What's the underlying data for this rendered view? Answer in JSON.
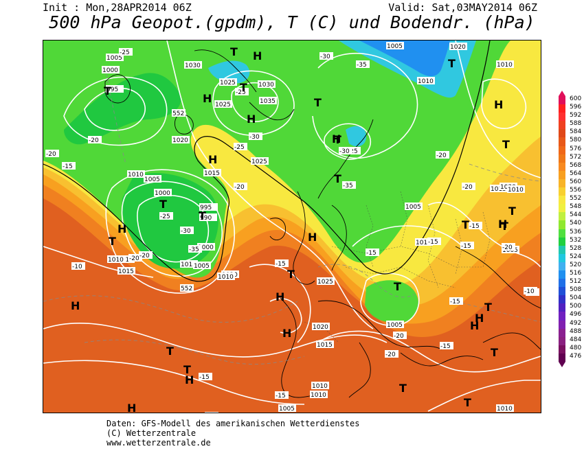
{
  "header": {
    "init": "Init : Mon,28APR2014 06Z",
    "valid": "Valid: Sat,03MAY2014 06Z",
    "title": "500 hPa Geopot.(gpdm), T (C) und Bodendr. (hPa)"
  },
  "footer": {
    "line1": "Daten: GFS-Modell des amerikanischen Wetterdienstes",
    "line2": "(C) Wetterzentrale",
    "line3": "www.wetterzentrale.de"
  },
  "legend": {
    "values": [
      "600",
      "596",
      "592",
      "588",
      "584",
      "580",
      "576",
      "572",
      "568",
      "564",
      "560",
      "556",
      "552",
      "548",
      "544",
      "540",
      "536",
      "532",
      "528",
      "524",
      "520",
      "516",
      "512",
      "508",
      "504",
      "500",
      "496",
      "492",
      "488",
      "484",
      "480",
      "476"
    ],
    "colors": [
      "#e0105a",
      "#ff2020",
      "#ff3030",
      "#f04020",
      "#e04818",
      "#e85818",
      "#f06818",
      "#f07818",
      "#f88a20",
      "#f8a020",
      "#f8b428",
      "#f8d030",
      "#f8e840",
      "#f0f040",
      "#c0f040",
      "#90e830",
      "#50e040",
      "#20d040",
      "#20c8b0",
      "#20c8e0",
      "#40b0f0",
      "#2090f0",
      "#2070e8",
      "#2050d8",
      "#3030c8",
      "#5020c0",
      "#7020c0",
      "#8020b0",
      "#8a2090",
      "#8a2080",
      "#7a1060",
      "#600050"
    ]
  },
  "map": {
    "pressure_labels": [
      "1005",
      "1000",
      "995",
      "1030",
      "1025",
      "1030",
      "1035",
      "1025",
      "995",
      "1000",
      "1010",
      "1015",
      "1015",
      "1010",
      "1020",
      "1020",
      "1025",
      "1005",
      "1000",
      "995",
      "990",
      "1000",
      "1005",
      "1010",
      "1010",
      "1015",
      "1025",
      "1005",
      "1010",
      "1005",
      "1010",
      "1020",
      "1015",
      "1010",
      "1005",
      "1010",
      "1015",
      "1020",
      "1005",
      "1010",
      "1010",
      "1005",
      "1010",
      "1020"
    ],
    "temp_labels": [
      "-25",
      "-20",
      "-15",
      "-30",
      "-25",
      "-35",
      "-30",
      "-25",
      "-20",
      "-15",
      "-20",
      "-25",
      "-30",
      "-35",
      "-20",
      "-15",
      "-10",
      "-20",
      "-25",
      "-30",
      "-35",
      "-20",
      "-15",
      "-20",
      "-15",
      "-15",
      "-20",
      "-15",
      "-10",
      "-15",
      "-20",
      "-15",
      "-20",
      "-15",
      "-20",
      "-10"
    ],
    "height_labels": [
      "552",
      "552"
    ],
    "highs": [
      "H",
      "H",
      "H",
      "H",
      "H",
      "H",
      "H",
      "H",
      "H",
      "H",
      "H",
      "H",
      "H",
      "H",
      "H",
      "H"
    ],
    "lows": [
      "T",
      "T",
      "T",
      "T",
      "T",
      "T",
      "T",
      "T",
      "T",
      "T",
      "T",
      "T",
      "T",
      "T",
      "T",
      "T",
      "T",
      "T",
      "T",
      "T",
      "T",
      "T"
    ]
  }
}
